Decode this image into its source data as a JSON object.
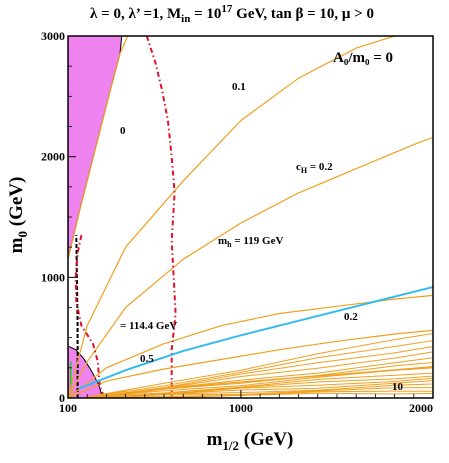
{
  "chart_data": {
    "type": "line",
    "title": "λ = 0, λ’ =1, M_in = 10^17 GeV, tan β = 10,  μ > 0",
    "title_parts": {
      "prefix": "λ = 0, λ’ =1, M",
      "sub": "in",
      "mid": " = 10",
      "sup": "17",
      "suffix": " GeV, tan β = 10,  μ > 0"
    },
    "xlabel": {
      "main": "m",
      "sub": "1/2",
      "rest": " (GeV)"
    },
    "ylabel": {
      "main": "m",
      "sub": "0",
      "rest": " (GeV)"
    },
    "xlim": [
      100,
      2000
    ],
    "ylim": [
      0,
      3000
    ],
    "x_scale": "linear",
    "x_ticks": [
      100,
      1000,
      2000
    ],
    "x_tick_labels": [
      "100",
      "1000",
      "2000"
    ],
    "y_ticks": [
      0,
      1000,
      2000,
      3000
    ],
    "y_tick_labels": [
      "0",
      "1000",
      "2000",
      "3000"
    ],
    "grid": false,
    "colors": {
      "stau_lsp": "#ee82ee",
      "wmap": "#22cc22",
      "ch_contours": "#f0a020",
      "higgs": "#e0102a",
      "gm2": "#33bbee",
      "ewsb": "#000000",
      "chargino": "#000000"
    },
    "annotations": {
      "a0": "A₀/m₀ = 0",
      "ch_01": "0.1",
      "ch_0": "0",
      "ch_02_label": "c",
      "ch_02_sub": "H",
      "ch_02_value": " =  0.2",
      "mh_119_label": "m",
      "mh_119_sub": "h",
      "mh_119_value": " = 119 GeV",
      "mh_1144": "= 114.4 GeV",
      "ch_02b": "0.2",
      "ch_05": "0.5",
      "ch_10": "10"
    },
    "series": [
      {
        "key": "ch_0",
        "color": "#f0a020",
        "x": [
          100,
          130,
          160,
          200,
          240,
          280,
          320,
          370,
          410
        ],
        "y": [
          1150,
          1350,
          1550,
          1800,
          2050,
          2300,
          2550,
          2850,
          3000
        ]
      },
      {
        "key": "ch_01",
        "color": "#f0a020",
        "x": [
          100,
          200,
          400,
          700,
          1000,
          1300,
          1600,
          1900,
          2000
        ],
        "y": [
          0,
          600,
          1250,
          1800,
          2300,
          2650,
          2900,
          3050,
          3080
        ]
      },
      {
        "key": "ch_02",
        "color": "#f0a020",
        "x": [
          100,
          200,
          400,
          700,
          1000,
          1300,
          1600,
          1900,
          2000
        ],
        "y": [
          0,
          300,
          750,
          1150,
          1450,
          1700,
          1900,
          2100,
          2160
        ]
      },
      {
        "key": "ch_02b",
        "color": "#f0a020",
        "x": [
          100,
          300,
          600,
          900,
          1200,
          1500,
          1800,
          2000
        ],
        "y": [
          0,
          250,
          450,
          600,
          700,
          760,
          820,
          850
        ]
      },
      {
        "key": "ch_05",
        "color": "#f0a020",
        "x": [
          100,
          300,
          600,
          900,
          1200,
          1500,
          1800,
          2000
        ],
        "y": [
          0,
          140,
          240,
          320,
          400,
          470,
          530,
          560
        ]
      },
      {
        "key": "ch_10",
        "color": "#f0a020",
        "x": [
          170,
          500,
          900,
          1300,
          1700,
          2000
        ],
        "y": [
          0,
          60,
          120,
          170,
          220,
          260
        ]
      },
      {
        "key": "higgs_1144",
        "color": "#e0102a",
        "x": [
          170,
          150,
          140,
          143,
          170,
          230,
          255,
          265,
          280,
          285,
          290
        ],
        "y": [
          1350,
          1200,
          1000,
          800,
          600,
          450,
          300,
          100,
          40,
          10,
          0
        ]
      },
      {
        "key": "higgs_119",
        "color": "#e0102a",
        "x": [
          510,
          555,
          590,
          620,
          640,
          655,
          640,
          650,
          660,
          640,
          640
        ],
        "y": [
          3000,
          2780,
          2550,
          2300,
          2000,
          1700,
          1300,
          1000,
          700,
          400,
          0
        ]
      },
      {
        "key": "gm2",
        "color": "#33bbee",
        "x": [
          160,
          400,
          700,
          1000,
          1300,
          1600,
          1900,
          2000
        ],
        "y": [
          80,
          230,
          390,
          520,
          640,
          760,
          880,
          920
        ]
      }
    ],
    "regions": [
      {
        "key": "stau_lsp",
        "label": ""
      },
      {
        "key": "wmap_strip",
        "label": ""
      },
      {
        "key": "small_mass_region",
        "label": ""
      }
    ]
  }
}
